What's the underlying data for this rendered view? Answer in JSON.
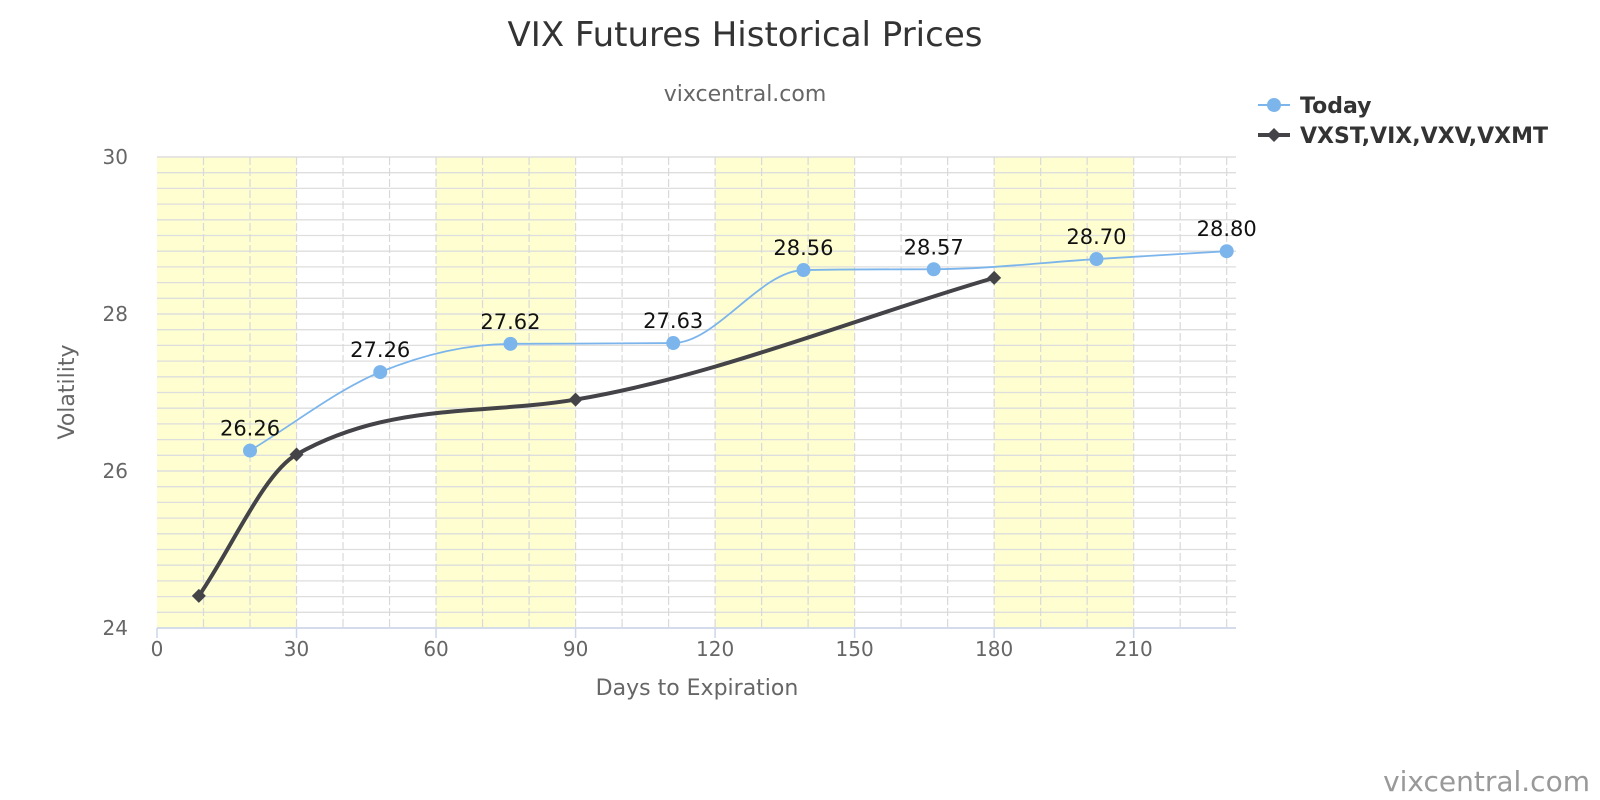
{
  "chart_data": {
    "type": "line",
    "title": "VIX Futures Historical Prices",
    "subtitle": "vixcentral.com",
    "xlabel": "Days to Expiration",
    "ylabel": "Volatility",
    "xlim": [
      0,
      232
    ],
    "ylim": [
      24,
      30
    ],
    "x_ticks": [
      0,
      30,
      60,
      90,
      120,
      150,
      180,
      210
    ],
    "y_ticks": [
      24,
      26,
      28,
      30
    ],
    "shaded_bands": [
      [
        0,
        30
      ],
      [
        60,
        90
      ],
      [
        120,
        150
      ],
      [
        180,
        210
      ]
    ],
    "grid": true,
    "legend_position": "top-right",
    "series": [
      {
        "name": "Today",
        "color": "#7cb5ec",
        "marker": "circle",
        "smooth": true,
        "x": [
          20,
          48,
          76,
          111,
          139,
          167,
          202,
          230
        ],
        "y": [
          26.26,
          27.26,
          27.62,
          27.63,
          28.56,
          28.57,
          28.7,
          28.8
        ],
        "labels": [
          "26.26",
          "27.26",
          "27.62",
          "27.63",
          "28.56",
          "28.57",
          "28.70",
          "28.80"
        ]
      },
      {
        "name": "VXST,VIX,VXV,VXMT",
        "color": "#434348",
        "marker": "diamond",
        "smooth": true,
        "x": [
          9,
          30,
          90,
          180
        ],
        "y": [
          24.41,
          26.21,
          26.91,
          28.46
        ]
      }
    ]
  },
  "credit": "vixcentral.com"
}
